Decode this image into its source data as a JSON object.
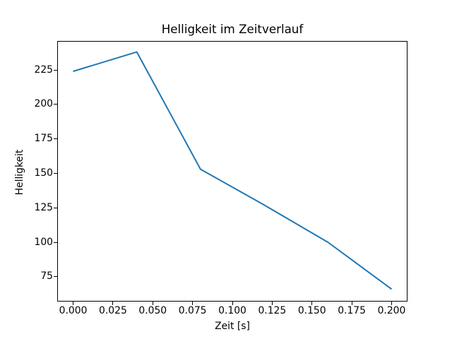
{
  "chart_data": {
    "type": "line",
    "title": "Helligkeit im Zeitverlauf",
    "xlabel": "Zeit [s]",
    "ylabel": "Helligkeit",
    "x": [
      0.0,
      0.04,
      0.08,
      0.12,
      0.16,
      0.2
    ],
    "y": [
      224,
      238,
      153,
      127,
      100,
      66
    ],
    "series": [
      {
        "name": "Helligkeit",
        "x": [
          0.0,
          0.04,
          0.08,
          0.12,
          0.16,
          0.2
        ],
        "values": [
          224,
          238,
          153,
          127,
          100,
          66
        ]
      }
    ],
    "xlim": [
      -0.01,
      0.21
    ],
    "ylim": [
      57,
      246
    ],
    "xtick_labels": [
      "0.000",
      "0.025",
      "0.050",
      "0.075",
      "0.100",
      "0.125",
      "0.150",
      "0.175",
      "0.200"
    ],
    "xtick_values": [
      0.0,
      0.025,
      0.05,
      0.075,
      0.1,
      0.125,
      0.15,
      0.175,
      0.2
    ],
    "ytick_labels": [
      "75",
      "100",
      "125",
      "150",
      "175",
      "200",
      "225"
    ],
    "ytick_values": [
      75,
      100,
      125,
      150,
      175,
      200,
      225
    ],
    "line_color": "#1f77b4",
    "spine_color": "#000000",
    "background_color": "#ffffff",
    "grid": false,
    "legend": null
  }
}
